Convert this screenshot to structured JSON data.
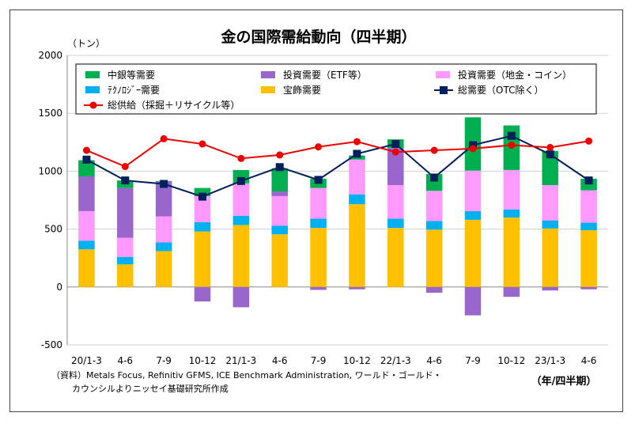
{
  "chart_data": {
    "type": "bar",
    "title": "金の国際需給動向（四半期）",
    "ylabel": "（トン）",
    "xlabel": "（年/四半期）",
    "ylim": [
      -500,
      2000
    ],
    "yticks": [
      -500,
      0,
      500,
      1000,
      1500,
      2000
    ],
    "stacked": true,
    "categories": [
      "20/1-3",
      "4-6",
      "7-9",
      "10-12",
      "21/1-3",
      "4-6",
      "7-9",
      "10-12",
      "22/1-3",
      "4-6",
      "7-9",
      "10-12",
      "23/1-3",
      "4-6"
    ],
    "series": [
      {
        "name": "宝飾需要",
        "color": "#ffc000",
        "values": [
          325,
          195,
          310,
          480,
          535,
          455,
          510,
          715,
          510,
          495,
          580,
          600,
          505,
          490
        ]
      },
      {
        "name": "ﾃｸﾉﾛｼﾞｰ需要",
        "color": "#00b0f0",
        "values": [
          75,
          65,
          75,
          80,
          80,
          75,
          80,
          85,
          80,
          75,
          75,
          70,
          70,
          65
        ]
      },
      {
        "name": "投資需要（地金・コイン）",
        "color": "#ff99ff",
        "values": [
          255,
          165,
          225,
          225,
          280,
          255,
          265,
          300,
          290,
          260,
          350,
          340,
          305,
          280
        ]
      },
      {
        "name": "投資需要（ETF等）",
        "color": "#9966cc",
        "values": [
          300,
          430,
          300,
          -125,
          -175,
          40,
          -25,
          -20,
          320,
          -50,
          -245,
          -85,
          -30,
          -20
        ]
      },
      {
        "name": "中銀等需要",
        "color": "#00b050",
        "values": [
          140,
          65,
          5,
          70,
          115,
          200,
          80,
          35,
          75,
          145,
          460,
          385,
          295,
          100
        ]
      }
    ],
    "lines": [
      {
        "name": "総需要（OTC除く）",
        "color": "#00205b",
        "marker": "square",
        "values": [
          1100,
          920,
          890,
          780,
          915,
          1035,
          925,
          1150,
          1235,
          945,
          1225,
          1305,
          1145,
          920
        ]
      },
      {
        "name": "総供給（採掘＋リサイクル等）",
        "color": "#ee0000",
        "marker": "circle",
        "values": [
          1180,
          1040,
          1280,
          1235,
          1110,
          1140,
          1210,
          1255,
          1165,
          1180,
          1195,
          1225,
          1205,
          1260
        ]
      }
    ],
    "legend": {
      "placement": "top",
      "entries": [
        "中銀等需要",
        "投資需要（ETF等）",
        "投資需要（地金・コイン）",
        "ﾃｸﾉﾛｼﾞｰ需要",
        "宝飾需要",
        "総需要（OTC除く）",
        "総供給（採掘＋リサイクル等）"
      ]
    },
    "source": [
      "（資料）Metals Focus, Refinitiv GFMS, ICE Benchmark Administration, ワールド・ゴールド・",
      "カウンシルよりニッセイ基礎研究所作成"
    ]
  }
}
